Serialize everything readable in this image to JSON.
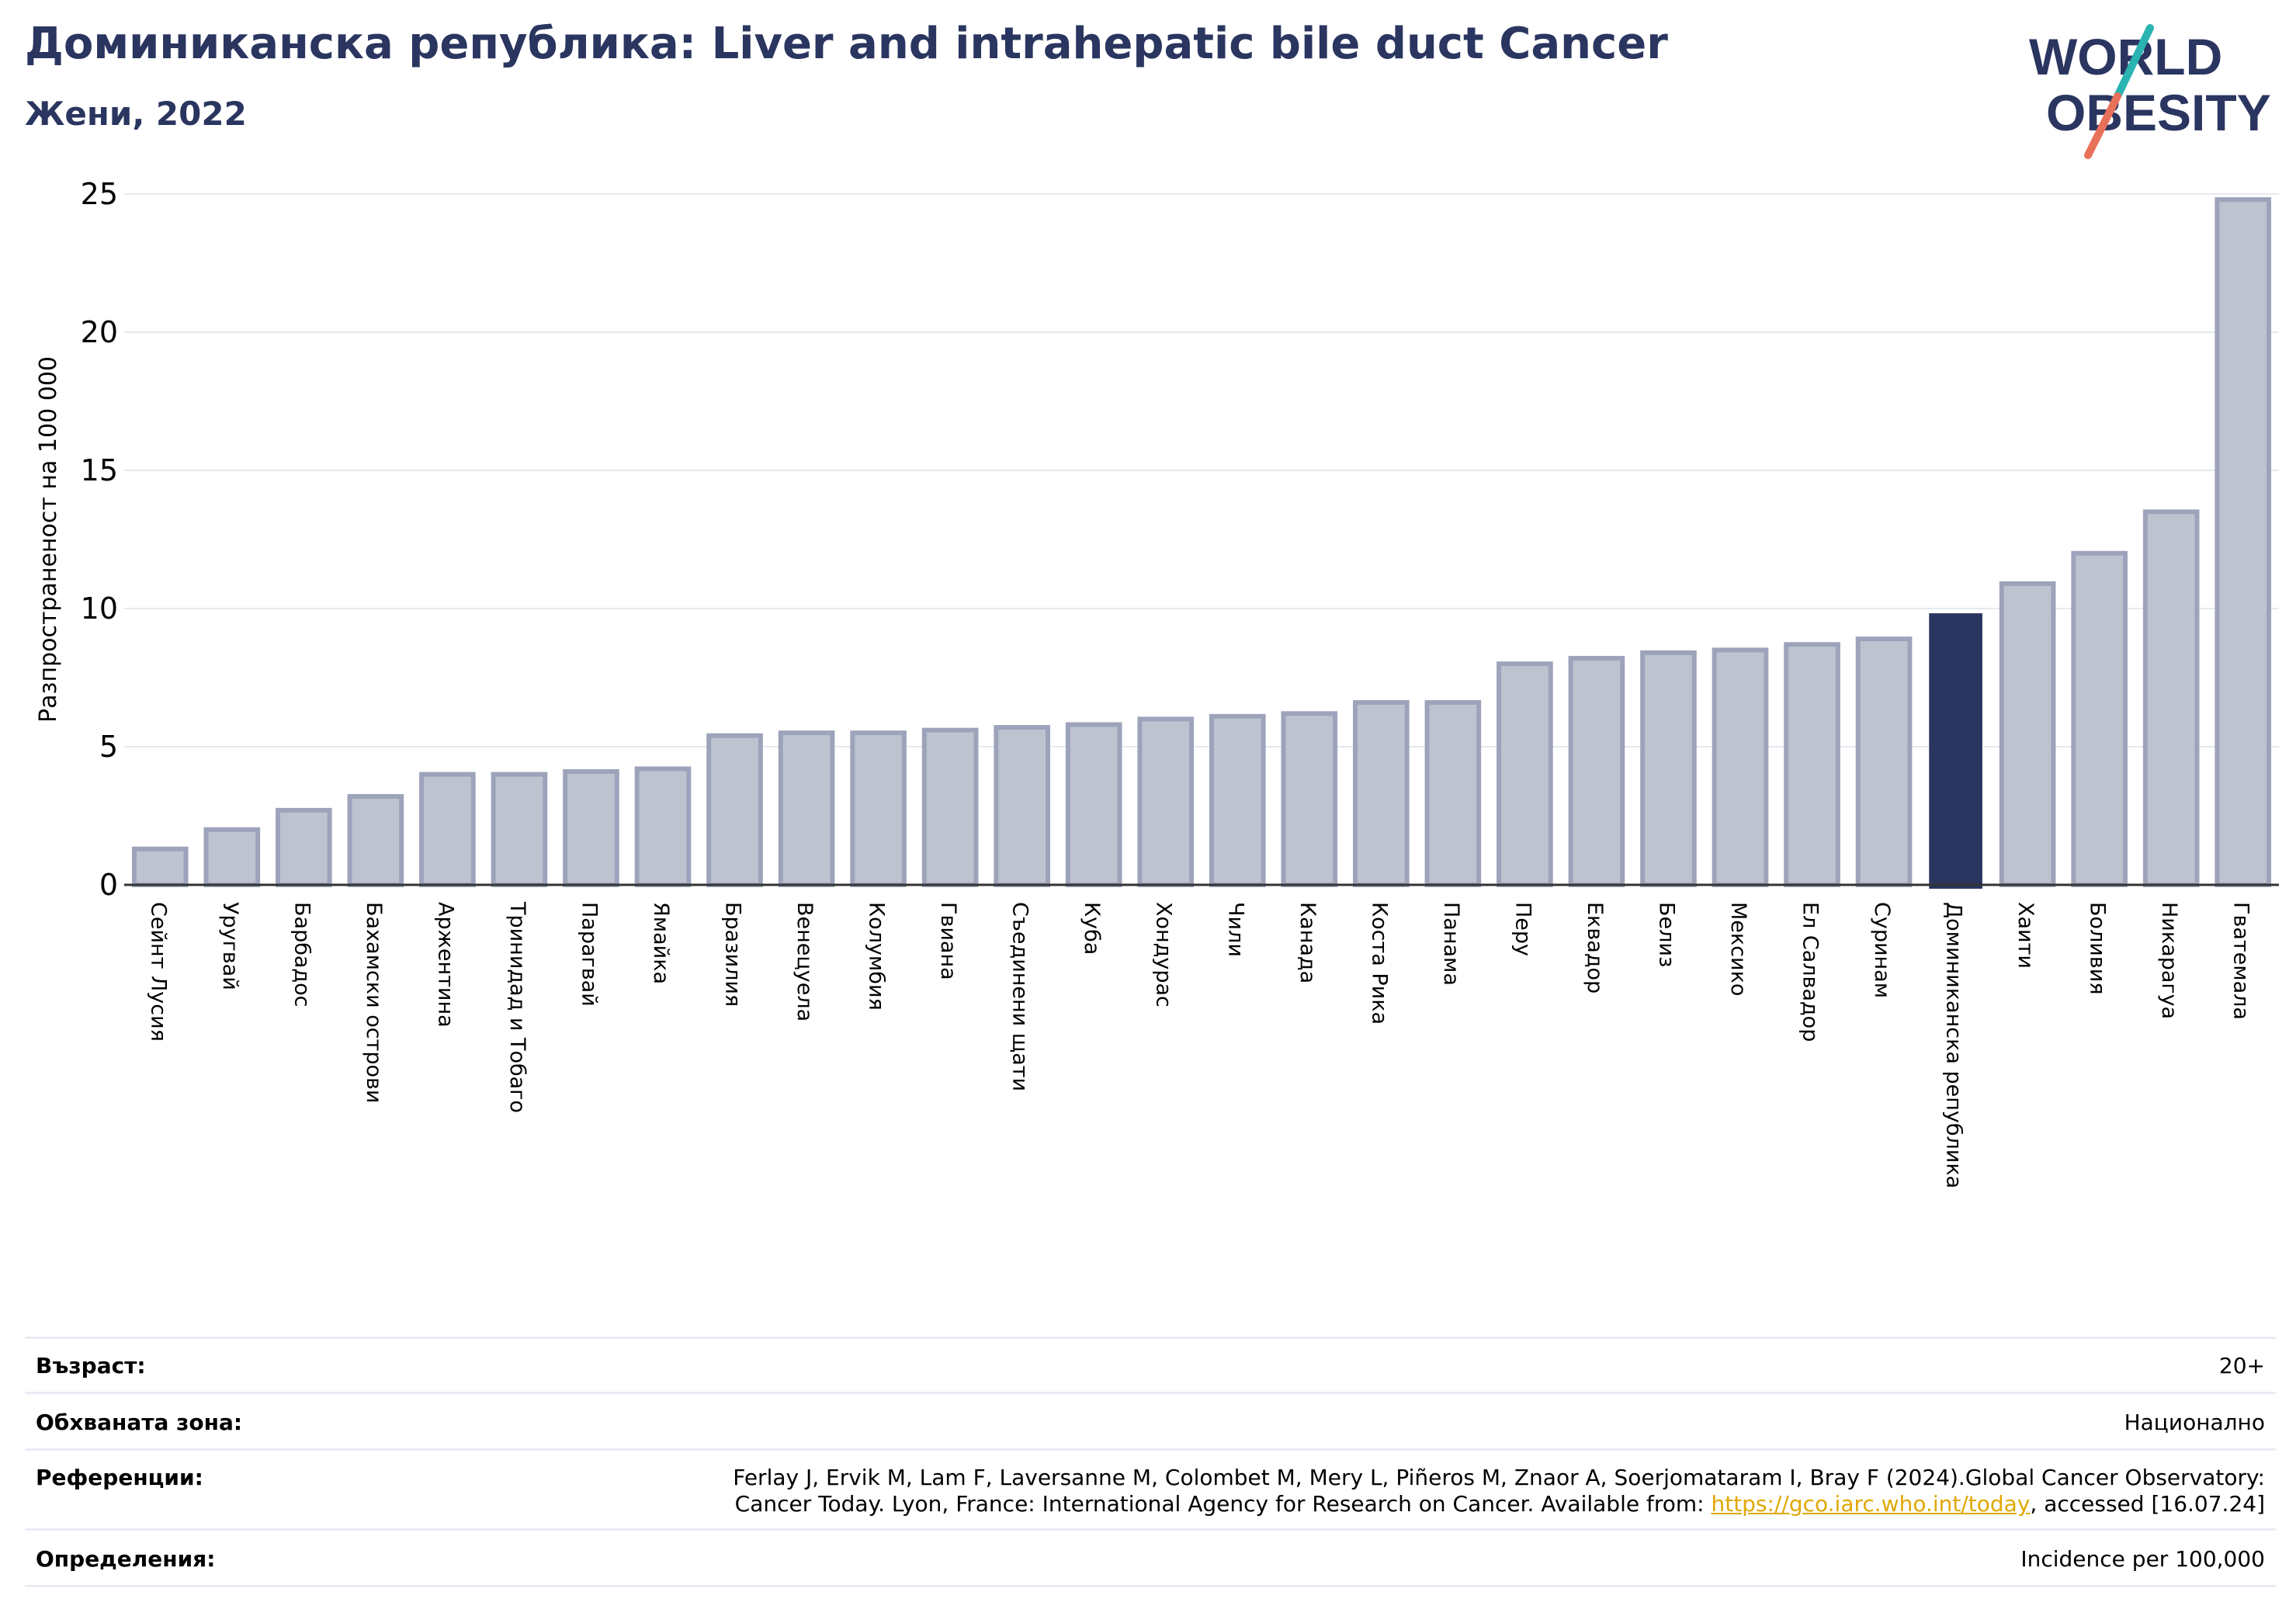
{
  "header": {
    "title": "Доминиканска република: Liver and intrahepatic bile duct Cancer",
    "subtitle": "Жени, 2022",
    "logo_text_line1": "WORLD",
    "logo_text_line2": "OBESITY"
  },
  "colors": {
    "title": "#2a3560",
    "bar": "#bfc3d0",
    "bar_border": "#9da3ba",
    "highlight": "#2a3560",
    "grid": "#e6e9ef",
    "logo_teal": "#2ab3b1",
    "logo_coral": "#e8715a",
    "link": "#e0a800"
  },
  "chart_data": {
    "type": "bar",
    "ylabel": "Разпространеност  на 100 000",
    "ylim": [
      0,
      25
    ],
    "yticks": [
      0,
      5,
      10,
      15,
      20,
      25
    ],
    "grid": true,
    "highlight_category": "Доминиканска република",
    "categories": [
      "Сейнт Лусия",
      "Уругвай",
      "Барбадос",
      "Бахамски острови",
      "Аржентина",
      "Тринидад и Тобаго",
      "Парагвай",
      "Ямайка",
      "Бразилия",
      "Венецуела",
      "Колумбия",
      "Гвиана",
      "Съединени щати",
      "Куба",
      "Хондурас",
      "Чили",
      "Канада",
      "Коста Рика",
      "Панама",
      "Перу",
      "Еквадор",
      "Белиз",
      "Мексико",
      "Ел Салвадор",
      "Суринам",
      "Доминиканска република",
      "Хаити",
      "Боливия",
      "Никарагуа",
      "Гватемала"
    ],
    "values": [
      1.3,
      2.0,
      2.7,
      3.2,
      4.0,
      4.0,
      4.1,
      4.2,
      5.4,
      5.5,
      5.5,
      5.6,
      5.7,
      5.8,
      6.0,
      6.1,
      6.2,
      6.6,
      6.6,
      8.0,
      8.2,
      8.4,
      8.5,
      8.7,
      8.9,
      9.8,
      10.9,
      12.0,
      13.5,
      24.8
    ]
  },
  "info": {
    "age_label": "Възраст:",
    "age_value": "20+",
    "area_label": "Обхваната зона:",
    "area_value": "Национално",
    "references_label": "Референции:",
    "references_line1": "Ferlay J, Ervik M, Lam F, Laversanne M, Colombet M, Mery L, Piñeros M, Znaor A, Soerjomataram I, Bray F (2024).Global Cancer Observatory:",
    "references_line2_pre": "Cancer Today. Lyon, France: International Agency for Research on Cancer. Available from: ",
    "references_link": "https://gco.iarc.who.int/today",
    "references_line2_post": ", accessed [16.07.24]",
    "definitions_label": "Определения:",
    "definitions_value": "Incidence per 100,000"
  }
}
